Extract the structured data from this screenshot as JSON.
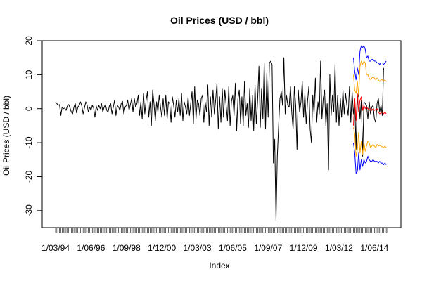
{
  "chart_data": {
    "type": "line",
    "title": "Oil Prices (USD / bbl)",
    "xlabel": "Index",
    "ylabel": "Oil Prices (USD / bbl)",
    "ylim": [
      -35,
      20
    ],
    "yticks": [
      -30,
      -20,
      -10,
      0,
      10,
      20
    ],
    "x_tick_labels": [
      "1/03/94",
      "1/06/96",
      "1/09/98",
      "1/12/00",
      "1/03/03",
      "1/06/05",
      "1/09/07",
      "1/12/09",
      "1/03/12",
      "1/06/14"
    ],
    "x_tick_label_index": [
      1,
      28,
      55,
      82,
      109,
      136,
      163,
      190,
      217,
      244
    ],
    "n_index": 254,
    "colors": {
      "observed": "#000000",
      "forecast_mean": "#ff0000",
      "interval_80": "#ffa500",
      "interval_95": "#0000ff"
    },
    "observed": [
      2.0,
      1.5,
      1.0,
      1.2,
      -2.0,
      0.5,
      0.0,
      0.2,
      -0.5,
      0.8,
      1.2,
      0.3,
      -1.0,
      -1.5,
      0.5,
      1.5,
      -1.2,
      0.5,
      1.0,
      2.0,
      0.8,
      -1.5,
      0.2,
      2.0,
      1.2,
      -1.0,
      0.5,
      -0.5,
      1.0,
      0.2,
      -2.5,
      0.8,
      -0.5,
      1.0,
      0.0,
      1.5,
      -1.0,
      0.5,
      1.2,
      -0.5,
      -1.0,
      0.8,
      1.5,
      -1.5,
      0.5,
      2.5,
      -2.0,
      1.0,
      0.5,
      -0.5,
      1.5,
      2.2,
      -1.5,
      0.5,
      1.0,
      2.5,
      -0.5,
      1.2,
      3.0,
      -1.0,
      3.0,
      0.5,
      1.5,
      4.0,
      -2.0,
      2.0,
      -3.0,
      4.5,
      -1.5,
      2.5,
      5.0,
      -2.5,
      2.0,
      -5.0,
      5.5,
      1.5,
      -3.5,
      2.0,
      -1.0,
      4.0,
      0.5,
      -2.5,
      3.0,
      -2.0,
      4.0,
      -3.0,
      2.0,
      1.5,
      -4.0,
      3.5,
      1.0,
      -2.5,
      2.5,
      -1.0,
      3.0,
      -2.0,
      4.5,
      -3.5,
      2.0,
      0.5,
      -1.5,
      3.5,
      -2.0,
      1.5,
      5.0,
      -4.5,
      6.5,
      -3.0,
      2.5,
      1.5,
      -2.0,
      3.0,
      4.0,
      -4.0,
      2.0,
      -1.0,
      7.0,
      -5.0,
      3.5,
      -2.5,
      5.5,
      -1.5,
      2.5,
      7.5,
      -6.0,
      3.5,
      -4.0,
      6.0,
      -2.5,
      5.5,
      1.0,
      -3.5,
      6.5,
      -5.0,
      2.0,
      4.0,
      -2.0,
      7.5,
      -6.5,
      3.0,
      5.5,
      -4.5,
      3.5,
      -5.0,
      8.0,
      -2.0,
      1.5,
      -5.5,
      6.0,
      -3.5,
      4.0,
      -6.5,
      7.0,
      -4.5,
      2.5,
      12.5,
      -5.5,
      6.0,
      -3.0,
      13.5,
      -6.0,
      10.5,
      -2.5,
      13.5,
      14.0,
      13.0,
      -16.0,
      -9.0,
      -33.0,
      -14.0,
      -5.0,
      3.0,
      5.0,
      1.0,
      15.0,
      -1.5,
      4.0,
      1.0,
      0.5,
      6.5,
      -1.0,
      -6.0,
      6.5,
      1.0,
      -12.0,
      5.5,
      -1.0,
      2.0,
      8.0,
      -2.5,
      4.5,
      -4.5,
      2.0,
      6.5,
      -6.0,
      -10.0,
      4.0,
      -1.5,
      9.0,
      -4.0,
      2.0,
      -1.5,
      14.0,
      -3.0,
      3.0,
      5.5,
      -5.0,
      1.5,
      -18.0,
      10.0,
      -2.0,
      4.0,
      -1.0,
      13.0,
      -4.0,
      4.0,
      -5.0,
      3.0,
      -2.5,
      5.5,
      -1.5,
      4.5,
      1.0,
      -2.0,
      6.5,
      -4.0,
      5.0,
      -1.5,
      2.0,
      -12.0,
      3.0,
      4.5,
      -3.0,
      2.5,
      -14.0,
      2.0,
      1.5,
      1.0,
      -3.0,
      2.0,
      -1.5,
      0.5,
      1.0,
      -3.0,
      -4.0,
      1.5,
      3.0,
      -1.0,
      1.0,
      -2.0,
      12.0
    ],
    "forecast": {
      "start_index": 228,
      "mean": [
        -5.0,
        3.0,
        -3.5,
        4.5,
        -1.0,
        2.5,
        3.5,
        -0.5,
        1.0,
        0.0,
        0.5,
        0.0,
        -0.5,
        0.0,
        -0.5,
        0.0,
        -0.5,
        -0.2,
        0.0,
        -1.0,
        -1.5,
        -1.2,
        -1.0,
        -1.5,
        -1.0,
        -1.5
      ],
      "lo_80": [
        -5.5,
        -7.5,
        -14.0,
        -12.0,
        -7.0,
        -13.0,
        -9.5,
        -13.5,
        -10.0,
        -12.5,
        -11.0,
        -9.5,
        -10.0,
        -11.5,
        -11.0,
        -10.5,
        -11.0,
        -11.5,
        -10.5,
        -11.0,
        -10.8,
        -11.0,
        -11.2,
        -11.5,
        -11.0,
        -11.5
      ],
      "hi_80": [
        10.0,
        5.5,
        4.5,
        8.0,
        4.0,
        12.5,
        14.0,
        13.0,
        14.0,
        13.5,
        10.0,
        10.0,
        9.0,
        8.5,
        9.0,
        9.5,
        9.0,
        8.5,
        9.0,
        8.5,
        8.0,
        8.5,
        8.5,
        8.0,
        8.5,
        8.0
      ],
      "lo_95": [
        -10.0,
        -13.0,
        -19.0,
        -18.5,
        -13.0,
        -18.0,
        -15.0,
        -17.0,
        -15.0,
        -16.0,
        -15.5,
        -14.0,
        -15.0,
        -15.5,
        -15.5,
        -15.0,
        -15.5,
        -15.5,
        -15.5,
        -16.0,
        -15.5,
        -16.0,
        -16.0,
        -16.5,
        -16.0,
        -16.5
      ],
      "hi_95": [
        15.0,
        11.0,
        8.5,
        12.0,
        10.0,
        17.0,
        18.5,
        18.0,
        18.5,
        17.5,
        15.0,
        15.5,
        14.0,
        14.0,
        14.5,
        14.5,
        14.0,
        14.0,
        13.5,
        13.5,
        13.0,
        13.5,
        13.5,
        13.0,
        13.5,
        14.0
      ]
    }
  }
}
